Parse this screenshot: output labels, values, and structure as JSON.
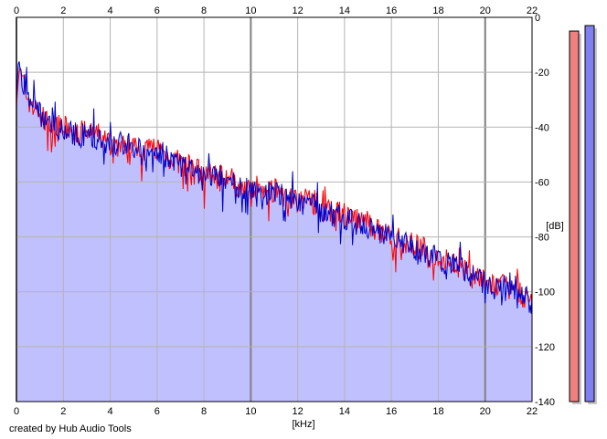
{
  "chart_data": {
    "type": "line",
    "title": "",
    "xlabel": "[kHz]",
    "ylabel": "[dB]",
    "xlim": [
      0,
      22
    ],
    "ylim": [
      -140,
      0
    ],
    "x_ticks": [
      0,
      2,
      4,
      6,
      8,
      10,
      12,
      14,
      16,
      18,
      20,
      22
    ],
    "y_ticks": [
      0,
      -20,
      -40,
      -60,
      -80,
      -100,
      -120,
      -140
    ],
    "grid": true,
    "colors": {
      "fill": "#c0c0ff",
      "left_channel": "#ff0000",
      "right_channel": "#0000c8",
      "gridline": "#b4b4b4",
      "major_gridline": "#808080",
      "meter_left": "#f08080",
      "meter_right": "#8080f0"
    },
    "series": [
      {
        "color": "#ff0000",
        "x": [
          0,
          0.1,
          0.2,
          0.5,
          1,
          1.5,
          2,
          2.5,
          3,
          3.5,
          4,
          4.5,
          5,
          5.5,
          6,
          6.5,
          7,
          7.5,
          8,
          8.5,
          9,
          9.5,
          10,
          10.5,
          11,
          11.5,
          12,
          12.5,
          13,
          13.5,
          14,
          14.5,
          15,
          15.5,
          16,
          16.5,
          17,
          17.5,
          18,
          18.5,
          19,
          19.5,
          20,
          20.5,
          21,
          21.5,
          22
        ],
        "values": [
          -28,
          -20,
          -22,
          -30,
          -36,
          -40,
          -40,
          -42,
          -42,
          -43,
          -46,
          -47,
          -46,
          -48,
          -47,
          -51,
          -53,
          -55,
          -57,
          -57,
          -58,
          -61,
          -61,
          -63,
          -63,
          -64,
          -67,
          -65,
          -70,
          -71,
          -72,
          -74,
          -75,
          -78,
          -80,
          -82,
          -83,
          -85,
          -88,
          -89,
          -91,
          -93,
          -97,
          -98,
          -98,
          -101,
          -103
        ]
      },
      {
        "color": "#0000c8",
        "x": [
          0,
          0.1,
          0.2,
          0.5,
          1,
          1.5,
          2,
          2.5,
          3,
          3.5,
          4,
          4.5,
          5,
          5.5,
          6,
          6.5,
          7,
          7.5,
          8,
          8.5,
          9,
          9.5,
          10,
          10.5,
          11,
          11.5,
          12,
          12.5,
          13,
          13.5,
          14,
          14.5,
          15,
          15.5,
          16,
          16.5,
          17,
          17.5,
          18,
          18.5,
          19,
          19.5,
          20,
          20.5,
          21,
          21.5,
          22
        ],
        "values": [
          -30,
          -18,
          -21,
          -28,
          -35,
          -39,
          -41,
          -43,
          -43,
          -44,
          -48,
          -46,
          -47,
          -49,
          -48,
          -52,
          -54,
          -56,
          -58,
          -58,
          -59,
          -62,
          -62,
          -64,
          -64,
          -65,
          -68,
          -66,
          -71,
          -72,
          -73,
          -75,
          -76,
          -79,
          -80,
          -82,
          -84,
          -86,
          -88,
          -90,
          -92,
          -94,
          -97,
          -99,
          -99,
          -101,
          -104
        ]
      }
    ],
    "meters": [
      {
        "color": "#f08080",
        "level_db": -5
      },
      {
        "color": "#8080f0",
        "level_db": -3
      }
    ],
    "footer": "created by Hub Audio Tools"
  }
}
